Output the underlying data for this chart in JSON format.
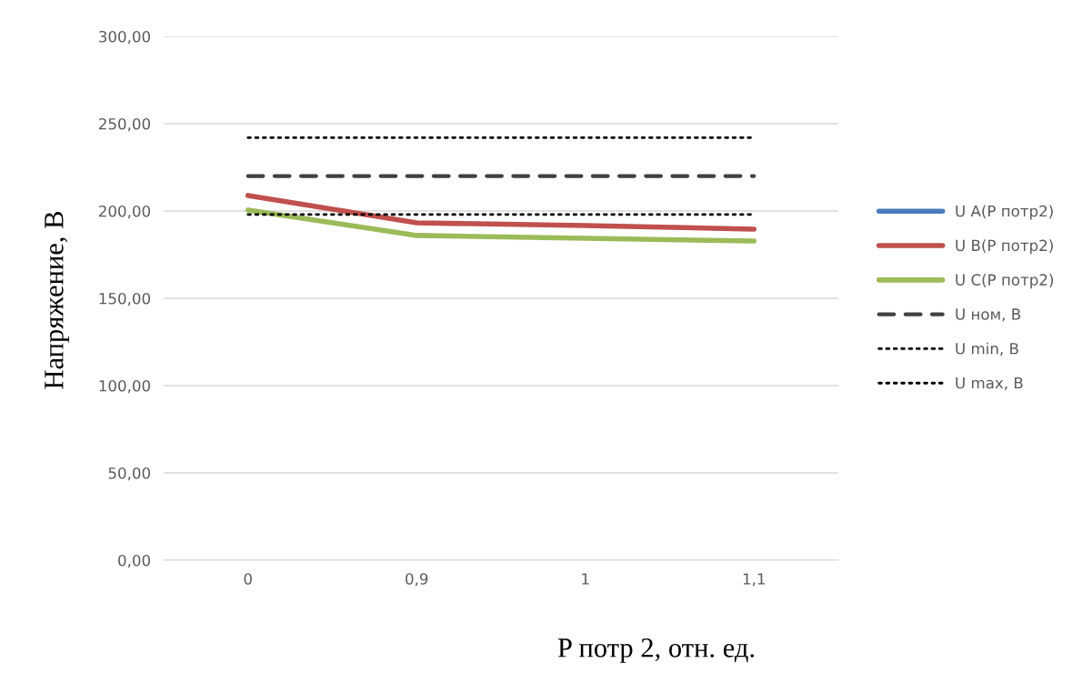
{
  "chart_data": {
    "type": "line",
    "xlabel": "P потр 2, отн. ед.",
    "ylabel": "Напряжение, В",
    "categories": [
      "0",
      "0,9",
      "1",
      "1,1"
    ],
    "series": [
      {
        "name": "U A(P потр2)",
        "color": "#4a7ebb",
        "line_style": "solid",
        "values": [
          null,
          null,
          null,
          null
        ]
      },
      {
        "name": "U B(P потр2)",
        "color": "#c0504d",
        "line_style": "solid",
        "values": [
          208.9,
          193.2,
          191.7,
          189.6
        ]
      },
      {
        "name": "U C(P потр2)",
        "color": "#9bbb59",
        "line_style": "solid",
        "values": [
          200.5,
          186,
          184.4,
          182.8
        ]
      },
      {
        "name": "U ном, В",
        "color": "#404040",
        "line_style": "dashed",
        "values": [
          220,
          220,
          220,
          220
        ]
      },
      {
        "name": "U min, В",
        "color": "#000000",
        "line_style": "dotted",
        "values": [
          198,
          198,
          198,
          198
        ]
      },
      {
        "name": "U max, В",
        "color": "#000000",
        "line_style": "dotted",
        "values": [
          242,
          242,
          242,
          242
        ]
      }
    ],
    "ylim": [
      0,
      300
    ],
    "yticks": [
      {
        "value": 0,
        "label": "0,00"
      },
      {
        "value": 50,
        "label": "50,00"
      },
      {
        "value": 100,
        "label": "100,00"
      },
      {
        "value": 150,
        "label": "150,00"
      },
      {
        "value": 200,
        "label": "200,00"
      },
      {
        "value": 250,
        "label": "250,00"
      },
      {
        "value": 300,
        "label": "300,00"
      }
    ],
    "grid": "y",
    "legend": "right",
    "marker": "none"
  }
}
